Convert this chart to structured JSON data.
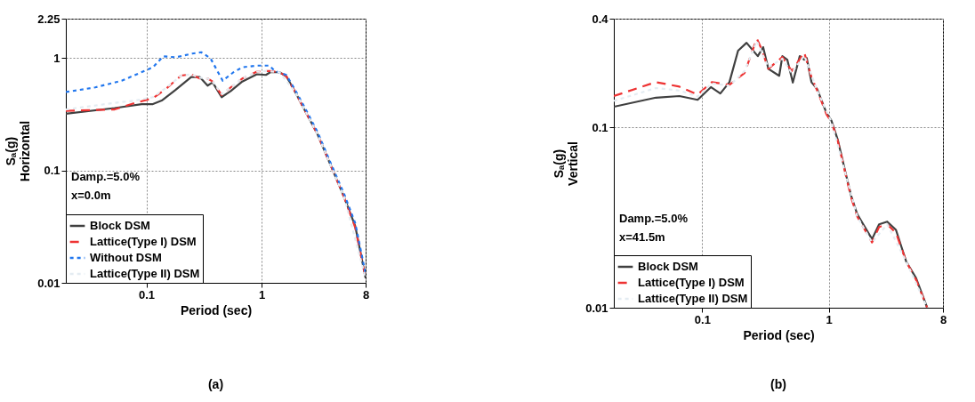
{
  "chart_data": [
    {
      "type": "line",
      "xlabel": "Period (sec)",
      "ylabel": "Sₐ(g)\nHorizontal",
      "log": "xy",
      "xlim": [
        0.02,
        8
      ],
      "ylim": [
        0.01,
        2.25
      ],
      "xticks": [
        0.1,
        1,
        8
      ],
      "yticks": [
        0.01,
        0.1,
        1,
        2.25
      ],
      "grid": true,
      "legend": "bottom left",
      "annotations": [
        "Damp.=5.0%",
        "x=0.0m",
        "(a)"
      ],
      "series": [
        {
          "name": "Block DSM",
          "color": "#404040",
          "line_style": "solid",
          "x": [
            0.02,
            0.053,
            0.091,
            0.114,
            0.136,
            0.178,
            0.245,
            0.29,
            0.34,
            0.376,
            0.45,
            0.54,
            0.68,
            0.91,
            1.09,
            1.19,
            1.43,
            1.64,
            1.96,
            2.35,
            3.06,
            4.0,
            5.2,
            6.5,
            8
          ],
          "values": [
            0.32,
            0.36,
            0.39,
            0.39,
            0.42,
            0.52,
            0.68,
            0.68,
            0.57,
            0.61,
            0.45,
            0.51,
            0.62,
            0.72,
            0.71,
            0.75,
            0.75,
            0.69,
            0.5,
            0.35,
            0.21,
            0.11,
            0.058,
            0.032,
            0.011
          ]
        },
        {
          "name": "Lattice(Type I) DSM",
          "color": "#ee3333",
          "line_style": "dashed",
          "x": [
            0.02,
            0.053,
            0.08,
            0.114,
            0.15,
            0.2,
            0.245,
            0.29,
            0.34,
            0.376,
            0.45,
            0.54,
            0.68,
            0.91,
            1.09,
            1.19,
            1.43,
            1.64,
            1.96,
            2.35,
            3.06,
            4.0,
            5.2,
            6.5,
            8
          ],
          "values": [
            0.34,
            0.35,
            0.4,
            0.44,
            0.54,
            0.7,
            0.72,
            0.66,
            0.66,
            0.62,
            0.47,
            0.55,
            0.66,
            0.76,
            0.77,
            0.77,
            0.75,
            0.69,
            0.5,
            0.35,
            0.21,
            0.11,
            0.058,
            0.031,
            0.011
          ]
        },
        {
          "name": "Without DSM",
          "color": "#2277ee",
          "line_style": "dotted",
          "x": [
            0.02,
            0.036,
            0.061,
            0.114,
            0.14,
            0.18,
            0.25,
            0.3,
            0.36,
            0.46,
            0.57,
            0.68,
            0.9,
            1.17,
            1.3,
            1.64,
            1.96,
            2.35,
            3.06,
            4.0,
            5.2,
            6.5,
            8
          ],
          "values": [
            0.5,
            0.55,
            0.63,
            0.83,
            1.04,
            1.02,
            1.1,
            1.13,
            1.0,
            0.63,
            0.75,
            0.83,
            0.86,
            0.86,
            0.77,
            0.71,
            0.52,
            0.37,
            0.22,
            0.115,
            0.062,
            0.034,
            0.012
          ]
        },
        {
          "name": "Lattice(Type II) DSM",
          "color": "#e4ecf2",
          "line_style": "dotted",
          "x": [
            0.02,
            0.053,
            0.08,
            0.114,
            0.15,
            0.2,
            0.245,
            0.29,
            0.34,
            0.376,
            0.45,
            0.54,
            0.68,
            0.91,
            1.09,
            1.43,
            1.96,
            3.06,
            5.2,
            8
          ],
          "values": [
            0.35,
            0.4,
            0.42,
            0.45,
            0.55,
            0.7,
            0.72,
            0.67,
            0.66,
            0.62,
            0.48,
            0.55,
            0.66,
            0.76,
            0.77,
            0.75,
            0.5,
            0.21,
            0.058,
            0.011
          ]
        }
      ]
    },
    {
      "type": "line",
      "xlabel": "Period (sec)",
      "ylabel": "Sₐ(g)\nVertical",
      "log": "xy",
      "xlim": [
        0.02,
        8
      ],
      "ylim": [
        0.01,
        0.4
      ],
      "xticks": [
        0.1,
        1,
        8
      ],
      "yticks": [
        0.01,
        0.1,
        0.4
      ],
      "grid": true,
      "legend": "bottom left",
      "annotations": [
        "Damp.=5.0%",
        "x=41.5m",
        "(b)"
      ],
      "series": [
        {
          "name": "Block DSM",
          "color": "#404040",
          "line_style": "solid",
          "x": [
            0.02,
            0.043,
            0.066,
            0.092,
            0.117,
            0.139,
            0.164,
            0.192,
            0.224,
            0.275,
            0.303,
            0.333,
            0.406,
            0.43,
            0.47,
            0.52,
            0.59,
            0.64,
            0.67,
            0.73,
            0.81,
            0.96,
            1.05,
            1.18,
            1.35,
            1.5,
            1.68,
            2.2,
            2.5,
            2.9,
            3.4,
            4.1,
            4.9,
            6.0
          ],
          "values": [
            0.13,
            0.146,
            0.149,
            0.142,
            0.167,
            0.154,
            0.178,
            0.266,
            0.294,
            0.248,
            0.278,
            0.211,
            0.193,
            0.248,
            0.237,
            0.177,
            0.248,
            0.237,
            0.242,
            0.178,
            0.163,
            0.12,
            0.109,
            0.085,
            0.057,
            0.042,
            0.033,
            0.024,
            0.029,
            0.03,
            0.027,
            0.018,
            0.0146,
            0.01
          ]
        },
        {
          "name": "Lattice(Type I) DSM",
          "color": "#ee3333",
          "line_style": "dashed",
          "x": [
            0.02,
            0.043,
            0.066,
            0.092,
            0.119,
            0.164,
            0.216,
            0.27,
            0.29,
            0.333,
            0.43,
            0.51,
            0.64,
            0.73,
            0.81,
            0.96,
            1.05,
            1.18,
            1.35,
            1.5,
            1.68,
            2.2,
            2.5,
            2.9,
            3.4,
            4.1,
            4.9,
            6.0
          ],
          "values": [
            0.149,
            0.178,
            0.168,
            0.152,
            0.178,
            0.172,
            0.2,
            0.31,
            0.278,
            0.211,
            0.245,
            0.205,
            0.26,
            0.19,
            0.16,
            0.118,
            0.107,
            0.084,
            0.056,
            0.041,
            0.032,
            0.023,
            0.028,
            0.029,
            0.026,
            0.018,
            0.0143,
            0.01
          ]
        },
        {
          "name": "Lattice(Type II) DSM",
          "color": "#e4ecf2",
          "line_style": "dotted",
          "x": [
            0.02,
            0.043,
            0.066,
            0.092,
            0.119,
            0.164,
            0.216,
            0.27,
            0.333,
            0.43,
            0.51,
            0.64,
            0.81,
            1.05,
            1.35,
            1.68,
            2.2,
            2.9,
            4.1,
            6.0
          ],
          "values": [
            0.14,
            0.165,
            0.16,
            0.148,
            0.175,
            0.17,
            0.205,
            0.3,
            0.215,
            0.24,
            0.2,
            0.25,
            0.16,
            0.107,
            0.056,
            0.032,
            0.023,
            0.029,
            0.018,
            0.01
          ]
        }
      ]
    }
  ]
}
